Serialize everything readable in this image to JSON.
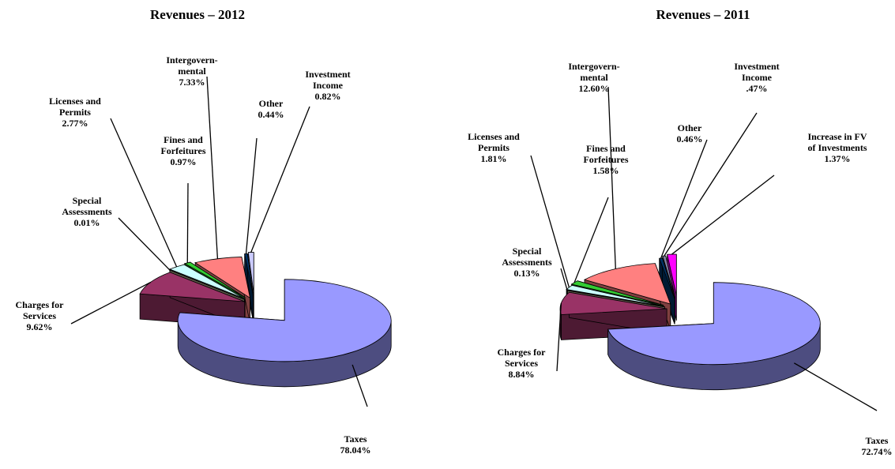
{
  "chart_data": [
    {
      "type": "pie",
      "title": "Revenues – 2012",
      "categories": [
        "Taxes",
        "Charges for\nServices",
        "Special\nAssessments",
        "Licenses and\nPermits",
        "Fines and\nForfeitures",
        "Intergovern-\nmental",
        "Other",
        "Investment\nIncome"
      ],
      "values": [
        78.04,
        9.62,
        0.01,
        2.77,
        0.97,
        7.33,
        0.44,
        0.82
      ],
      "value_labels": [
        "78.04%",
        "9.62%",
        "0.01%",
        "2.77%",
        "0.97%",
        "7.33%",
        "0.44%",
        "0.82%"
      ],
      "colors": [
        "#9999ff",
        "#993366",
        "#b8b090",
        "#ccffff",
        "#33cc33",
        "#ff8080",
        "#003366",
        "#ccccff"
      ]
    },
    {
      "type": "pie",
      "title": "Revenues – 2011",
      "categories": [
        "Taxes",
        "Charges for\nServices",
        "Special\nAssessments",
        "Licenses and\nPermits",
        "Fines and\nForfeitures",
        "Intergovern-\nmental",
        "Other",
        "Investment\nIncome",
        "Increase in FV\nof  Investments"
      ],
      "values": [
        72.74,
        8.84,
        0.13,
        1.81,
        1.58,
        12.6,
        0.46,
        0.47,
        1.37
      ],
      "value_labels": [
        "72.74%",
        "8.84%",
        "0.13%",
        "1.81%",
        "1.58%",
        "12.60%",
        "0.46%",
        ".47%",
        "1.37%"
      ],
      "colors": [
        "#9999ff",
        "#993366",
        "#b8b090",
        "#ccffff",
        "#33cc33",
        "#ff8080",
        "#003366",
        "#8080a0",
        "#ff00ff"
      ]
    }
  ]
}
